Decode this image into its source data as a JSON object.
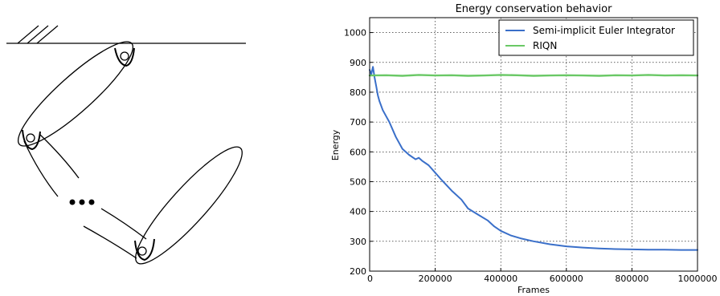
{
  "chart_data": {
    "type": "line",
    "title": "Energy conservation behavior",
    "xlabel": "Frames",
    "ylabel": "Energy",
    "xlim": [
      0,
      1000000
    ],
    "ylim": [
      200,
      1050
    ],
    "x_ticks": [
      0,
      200000,
      400000,
      600000,
      800000,
      1000000
    ],
    "x_tick_labels": [
      "0",
      "200000",
      "400000",
      "600000",
      "800000",
      "1000000"
    ],
    "y_ticks": [
      200,
      300,
      400,
      500,
      600,
      700,
      800,
      900,
      1000
    ],
    "y_tick_labels": [
      "200",
      "300",
      "400",
      "500",
      "600",
      "700",
      "800",
      "900",
      "1000"
    ],
    "grid": true,
    "legend_position": "top-right",
    "series": [
      {
        "name": "Semi-implicit Euler Integrator",
        "color": "#3a6fc9",
        "x": [
          0,
          5000,
          10000,
          15000,
          20000,
          25000,
          30000,
          40000,
          50000,
          60000,
          80000,
          100000,
          120000,
          140000,
          150000,
          160000,
          180000,
          200000,
          220000,
          250000,
          280000,
          300000,
          330000,
          360000,
          380000,
          400000,
          430000,
          460000,
          500000,
          550000,
          600000,
          650000,
          700000,
          750000,
          800000,
          850000,
          900000,
          950000,
          1000000
        ],
        "y": [
          875,
          860,
          885,
          850,
          820,
          790,
          770,
          740,
          720,
          700,
          650,
          610,
          590,
          575,
          580,
          570,
          555,
          530,
          505,
          470,
          440,
          410,
          390,
          370,
          350,
          335,
          320,
          310,
          300,
          290,
          283,
          279,
          276,
          274,
          273,
          272,
          272,
          271,
          271
        ]
      },
      {
        "name": "RIQN",
        "color": "#6ac866",
        "x": [
          0,
          50000,
          100000,
          150000,
          200000,
          250000,
          300000,
          350000,
          400000,
          450000,
          500000,
          550000,
          600000,
          650000,
          700000,
          750000,
          800000,
          850000,
          900000,
          950000,
          1000000
        ],
        "y": [
          856,
          857,
          855,
          858,
          856,
          857,
          855,
          856,
          858,
          857,
          855,
          856,
          857,
          856,
          855,
          857,
          856,
          858,
          856,
          857,
          856
        ]
      }
    ]
  }
}
